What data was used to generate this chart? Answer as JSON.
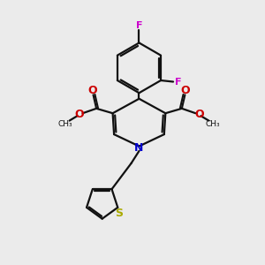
{
  "bg_color": "#ebebeb",
  "bond_color": "#111111",
  "N_color": "#0000cc",
  "O_color": "#cc0000",
  "F_color": "#cc00cc",
  "S_color": "#aaaa00",
  "lw": 1.6,
  "figsize": [
    3.0,
    3.0
  ],
  "dpi": 100,
  "xlim": [
    0,
    10
  ],
  "ylim": [
    0,
    10
  ]
}
